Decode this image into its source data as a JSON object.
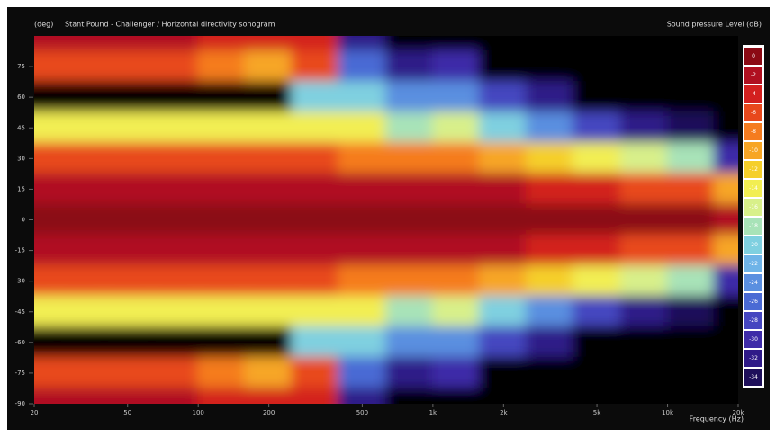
{
  "chart_data": {
    "type": "heatmap",
    "title": "Stant Pound - Challenger / Horizontal directivity sonogram",
    "y_label": "(deg)",
    "x_label": "Frequency (Hz)",
    "colorbar_label": "Sound pressure Level (dB)",
    "x": [
      20,
      31.5,
      50,
      80,
      125,
      200,
      315,
      500,
      800,
      1250,
      2000,
      3150,
      5000,
      8000,
      12500,
      20000
    ],
    "y": [
      90,
      75,
      60,
      45,
      30,
      15,
      0,
      -15,
      -30,
      -45,
      -60,
      -75,
      -90
    ],
    "z": [
      [
        -2,
        -2,
        -2,
        -2,
        -3,
        -4,
        -4,
        -32,
        -40,
        -36,
        -40,
        -40,
        -40,
        -40,
        -40,
        -40
      ],
      [
        -6,
        -6,
        -6,
        -6,
        -8,
        -10,
        -6,
        -26,
        -32,
        -30,
        -40,
        -40,
        -40,
        -40,
        -40,
        -40
      ],
      [
        -40,
        -40,
        -40,
        -40,
        -40,
        -40,
        -20,
        -20,
        -24,
        -23,
        -28,
        -32,
        -38,
        -40,
        -40,
        -40
      ],
      [
        -13,
        -13,
        -13,
        -13,
        -13,
        -13,
        -14,
        -14,
        -18,
        -16,
        -20,
        -24,
        -28,
        -31,
        -34,
        -40
      ],
      [
        -5,
        -5,
        -5,
        -5,
        -5,
        -5,
        -6,
        -7,
        -8,
        -8,
        -9,
        -11,
        -13,
        -15,
        -18,
        -30
      ],
      [
        -1,
        -1,
        -1,
        -1,
        -1,
        -1,
        -1,
        -2,
        -2,
        -2,
        -2,
        -3,
        -4,
        -5,
        -6,
        -10
      ],
      [
        0,
        0,
        0,
        0,
        0,
        0,
        0,
        0,
        0,
        0,
        0,
        0,
        0,
        0,
        0,
        -2
      ],
      [
        -1,
        -1,
        -1,
        -1,
        -1,
        -1,
        -1,
        -2,
        -2,
        -2,
        -2,
        -3,
        -4,
        -5,
        -6,
        -10
      ],
      [
        -5,
        -5,
        -5,
        -5,
        -5,
        -5,
        -6,
        -7,
        -8,
        -8,
        -9,
        -11,
        -13,
        -15,
        -18,
        -30
      ],
      [
        -13,
        -13,
        -13,
        -13,
        -13,
        -13,
        -14,
        -14,
        -18,
        -16,
        -20,
        -24,
        -28,
        -31,
        -34,
        -40
      ],
      [
        -40,
        -40,
        -40,
        -40,
        -40,
        -40,
        -20,
        -20,
        -24,
        -23,
        -28,
        -32,
        -38,
        -40,
        -40,
        -40
      ],
      [
        -6,
        -6,
        -6,
        -6,
        -8,
        -10,
        -6,
        -26,
        -32,
        -30,
        -40,
        -40,
        -40,
        -40,
        -40,
        -40
      ],
      [
        -2,
        -2,
        -2,
        -2,
        -3,
        -4,
        -4,
        -32,
        -40,
        -36,
        -40,
        -40,
        -40,
        -40,
        -40,
        -40
      ]
    ],
    "xlim": [
      20,
      20000
    ],
    "xscale": "log",
    "xticks": [
      20,
      50,
      100,
      200,
      500,
      {
        "value": 1000,
        "label": "1k"
      },
      {
        "value": 2000,
        "label": "2k"
      },
      {
        "value": 5000,
        "label": "5k"
      },
      {
        "value": 10000,
        "label": "10k"
      },
      {
        "value": 20000,
        "label": "20k"
      }
    ],
    "ylim": [
      -90,
      90
    ],
    "yticks": [
      -90,
      -75,
      -60,
      -45,
      -30,
      -15,
      0,
      15,
      30,
      45,
      60,
      75
    ],
    "colorbar": {
      "levels": [
        0,
        -2,
        -4,
        -6,
        -8,
        -10,
        -12,
        -14,
        -16,
        -18,
        -20,
        -22,
        -24,
        -26,
        -28,
        -30,
        -32,
        -34
      ],
      "colors": [
        "#8b0a14",
        "#b01020",
        "#d3201f",
        "#e8481c",
        "#f57c1f",
        "#f7a625",
        "#f5cf2a",
        "#f2ee52",
        "#d8f08a",
        "#a8e3b8",
        "#7fd0e0",
        "#6fb4e8",
        "#5a8fe0",
        "#4a6ad4",
        "#4546c0",
        "#3e2ba8",
        "#2f1a88",
        "#1e0f5a"
      ]
    }
  }
}
